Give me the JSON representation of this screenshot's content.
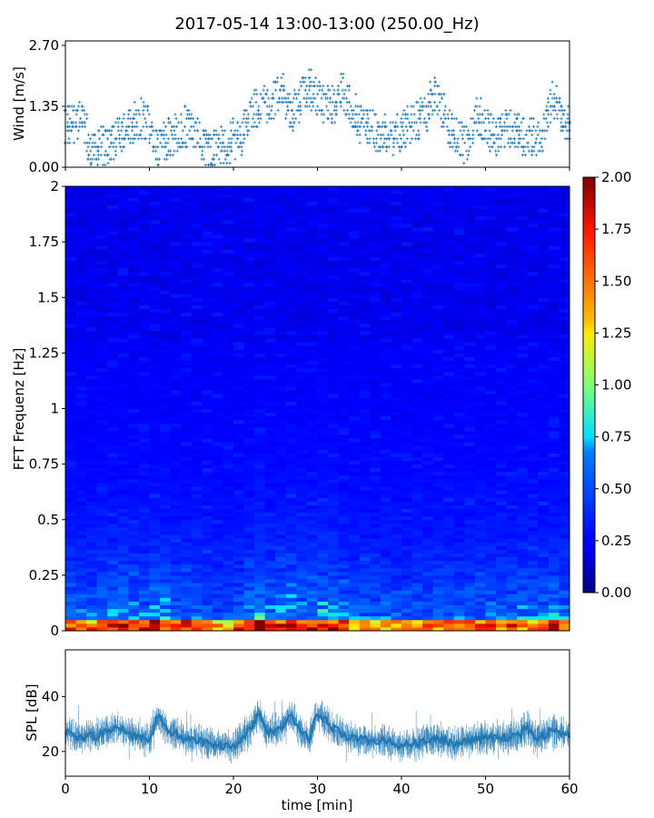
{
  "figure": {
    "title": "2017-05-14 13:00-13:00 (250.00_Hz)"
  },
  "chart_data": [
    {
      "type": "scatter",
      "panel": "wind",
      "ylabel": "Wind [m/s]",
      "xlim": [
        0,
        60
      ],
      "ylim": [
        0,
        2.7
      ],
      "yticks": [
        "0.00",
        "1.35",
        "2.70"
      ],
      "marker": "+",
      "color": "#1f77b4",
      "envelope_note_x": [
        0,
        2,
        3,
        5,
        7,
        9,
        10,
        11,
        13,
        15,
        17,
        19,
        21,
        22,
        24,
        26,
        27,
        29,
        30,
        32,
        33,
        35,
        37,
        39,
        41,
        43,
        44,
        46,
        48,
        49,
        51,
        53,
        55,
        57,
        58,
        60
      ],
      "envelope_y_center": [
        0.9,
        1.1,
        0.4,
        0.5,
        0.8,
        1.1,
        0.9,
        0.4,
        0.8,
        0.9,
        0.3,
        0.5,
        0.7,
        1.3,
        1.4,
        1.6,
        1.2,
        1.8,
        1.5,
        1.4,
        1.7,
        1.0,
        0.8,
        0.7,
        0.9,
        1.2,
        1.7,
        0.7,
        0.5,
        1.2,
        0.7,
        0.9,
        0.6,
        0.8,
        1.6,
        0.8
      ]
    },
    {
      "type": "heatmap",
      "panel": "spectrogram",
      "ylabel": "FFT Frequenz [Hz]",
      "xlim": [
        0,
        60
      ],
      "ylim": [
        0,
        2
      ],
      "yticks": [
        "0",
        "0.25",
        "0.5",
        "0.75",
        "1",
        "1.25",
        "1.5",
        "1.75",
        "2"
      ],
      "colormap": "jet",
      "colorbar": {
        "range": [
          0,
          2
        ],
        "ticks": [
          "0.00",
          "0.25",
          "0.50",
          "0.75",
          "1.00",
          "1.25",
          "1.50",
          "1.75",
          "2.00"
        ]
      }
    },
    {
      "type": "line",
      "panel": "spl",
      "ylabel": "SPL [dB]",
      "xlabel": "time [min]",
      "xlim": [
        0,
        60
      ],
      "ylim": [
        11,
        57
      ],
      "yticks": [
        "20",
        "40"
      ],
      "xticks": [
        "0",
        "10",
        "20",
        "30",
        "40",
        "50",
        "60"
      ],
      "color": "#1f77b4",
      "x": [
        0,
        2,
        4,
        6,
        8,
        10,
        11,
        12,
        14,
        16,
        18,
        20,
        22,
        23,
        24,
        26,
        27,
        28,
        29,
        30,
        32,
        34,
        36,
        38,
        40,
        42,
        44,
        46,
        48,
        50,
        52,
        54,
        55,
        56,
        58,
        60
      ],
      "values": [
        27,
        25,
        26,
        29,
        26,
        24,
        33,
        28,
        25,
        24,
        22,
        22,
        28,
        34,
        27,
        29,
        33,
        27,
        25,
        34,
        28,
        25,
        24,
        24,
        22,
        23,
        25,
        23,
        24,
        25,
        25,
        26,
        29,
        24,
        28,
        26
      ]
    }
  ]
}
